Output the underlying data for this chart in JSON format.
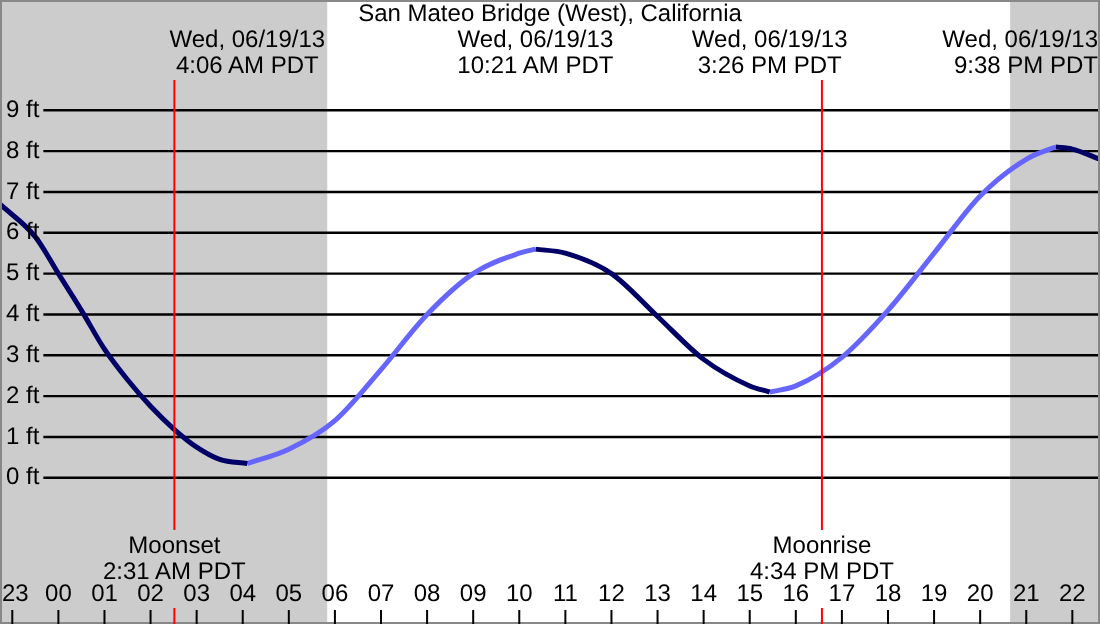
{
  "chart_data": {
    "type": "line",
    "title": "San Mateo Bridge (West), California",
    "xlim": [
      "--06-18T22:44",
      "--06-19T22:36"
    ],
    "ylim": [
      -3.58,
      11.7
    ],
    "xticks": [
      {
        "value": "--06-18T23:00",
        "label": "23"
      },
      {
        "value": "--06-19T00:00",
        "label": "00"
      },
      {
        "value": "--06-19T01:00",
        "label": "01"
      },
      {
        "value": "--06-19T02:00",
        "label": "02"
      },
      {
        "value": "--06-19T03:00",
        "label": "03"
      },
      {
        "value": "--06-19T04:00",
        "label": "04"
      },
      {
        "value": "--06-19T05:00",
        "label": "05"
      },
      {
        "value": "--06-19T06:00",
        "label": "06"
      },
      {
        "value": "--06-19T07:00",
        "label": "07"
      },
      {
        "value": "--06-19T08:00",
        "label": "08"
      },
      {
        "value": "--06-19T09:00",
        "label": "09"
      },
      {
        "value": "--06-19T10:00",
        "label": "10"
      },
      {
        "value": "--06-19T11:00",
        "label": "11"
      },
      {
        "value": "--06-19T12:00",
        "label": "12"
      },
      {
        "value": "--06-19T13:00",
        "label": "13"
      },
      {
        "value": "--06-19T14:00",
        "label": "14"
      },
      {
        "value": "--06-19T15:00",
        "label": "15"
      },
      {
        "value": "--06-19T16:00",
        "label": "16"
      },
      {
        "value": "--06-19T17:00",
        "label": "17"
      },
      {
        "value": "--06-19T18:00",
        "label": "18"
      },
      {
        "value": "--06-19T19:00",
        "label": "19"
      },
      {
        "value": "--06-19T20:00",
        "label": "20"
      },
      {
        "value": "--06-19T21:00",
        "label": "21"
      },
      {
        "value": "--06-19T22:00",
        "label": "22"
      }
    ],
    "yticks": [
      {
        "value": 0,
        "label": "0 ft"
      },
      {
        "value": 1,
        "label": "1 ft"
      },
      {
        "value": 2,
        "label": "2 ft"
      },
      {
        "value": 3,
        "label": "3 ft"
      },
      {
        "value": 4,
        "label": "4 ft"
      },
      {
        "value": 5,
        "label": "5 ft"
      },
      {
        "value": 6,
        "label": "6 ft"
      },
      {
        "value": 7,
        "label": "7 ft"
      },
      {
        "value": 8,
        "label": "8 ft"
      },
      {
        "value": 9,
        "label": "9 ft"
      }
    ],
    "grid": "y",
    "series": [
      {
        "color": "#000066",
        "x": [
          "--06-18T22:44",
          "--06-18T23:30",
          "--06-19T00:00",
          "--06-19T00:30",
          "--06-19T01:00",
          "--06-19T01:30",
          "--06-19T02:00",
          "--06-19T02:30",
          "--06-19T03:00",
          "--06-19T03:30",
          "--06-19T04:06"
        ],
        "values": [
          6.7,
          5.9,
          5.0,
          4.1,
          3.15,
          2.4,
          1.75,
          1.2,
          0.75,
          0.45,
          0.35
        ]
      },
      {
        "color": "#6666ff",
        "x": [
          "--06-19T04:06",
          "--06-19T05:00",
          "--06-19T06:00",
          "--06-19T07:00",
          "--06-19T08:00",
          "--06-19T09:00",
          "--06-19T10:00",
          "--06-19T10:21"
        ],
        "values": [
          0.35,
          0.7,
          1.4,
          2.65,
          4.0,
          5.0,
          5.5,
          5.6
        ]
      },
      {
        "color": "#000066",
        "x": [
          "--06-19T10:21",
          "--06-19T11:00",
          "--06-19T12:00",
          "--06-19T13:00",
          "--06-19T14:00",
          "--06-19T15:00",
          "--06-19T15:26"
        ],
        "values": [
          5.6,
          5.5,
          5.0,
          3.95,
          2.9,
          2.25,
          2.1
        ]
      },
      {
        "color": "#6666ff",
        "x": [
          "--06-19T15:26",
          "--06-19T16:00",
          "--06-19T17:00",
          "--06-19T18:00",
          "--06-19T19:00",
          "--06-19T20:00",
          "--06-19T21:00",
          "--06-19T21:38"
        ],
        "values": [
          2.1,
          2.25,
          2.95,
          4.1,
          5.5,
          6.9,
          7.8,
          8.1
        ]
      },
      {
        "color": "#000066",
        "x": [
          "--06-19T21:38",
          "--06-19T22:00",
          "--06-19T22:36"
        ],
        "values": [
          8.1,
          8.05,
          7.8
        ]
      }
    ],
    "bands": [
      {
        "axis": "x",
        "from": "--06-18T22:44",
        "to": "--06-19T05:50",
        "color": "#cccccc"
      },
      {
        "axis": "x",
        "from": "--06-19T20:39",
        "to": "--06-19T22:36",
        "color": "#cccccc"
      }
    ],
    "ref_lines": [
      {
        "axis": "x",
        "value": "--06-19T02:31",
        "label": "Moonset\n2:31 AM PDT",
        "color": "#ff0000"
      },
      {
        "axis": "x",
        "value": "--06-19T16:34",
        "label": "Moonrise\n4:34 PM PDT",
        "color": "#ff0000"
      }
    ],
    "annotations": [
      "Wed, 06/19/13\n4:06 AM PDT",
      "Wed, 06/19/13\n10:21 AM PDT",
      "Wed, 06/19/13\n3:26 PM PDT",
      "Wed, 06/19/13\n9:38 PM PDT"
    ]
  }
}
